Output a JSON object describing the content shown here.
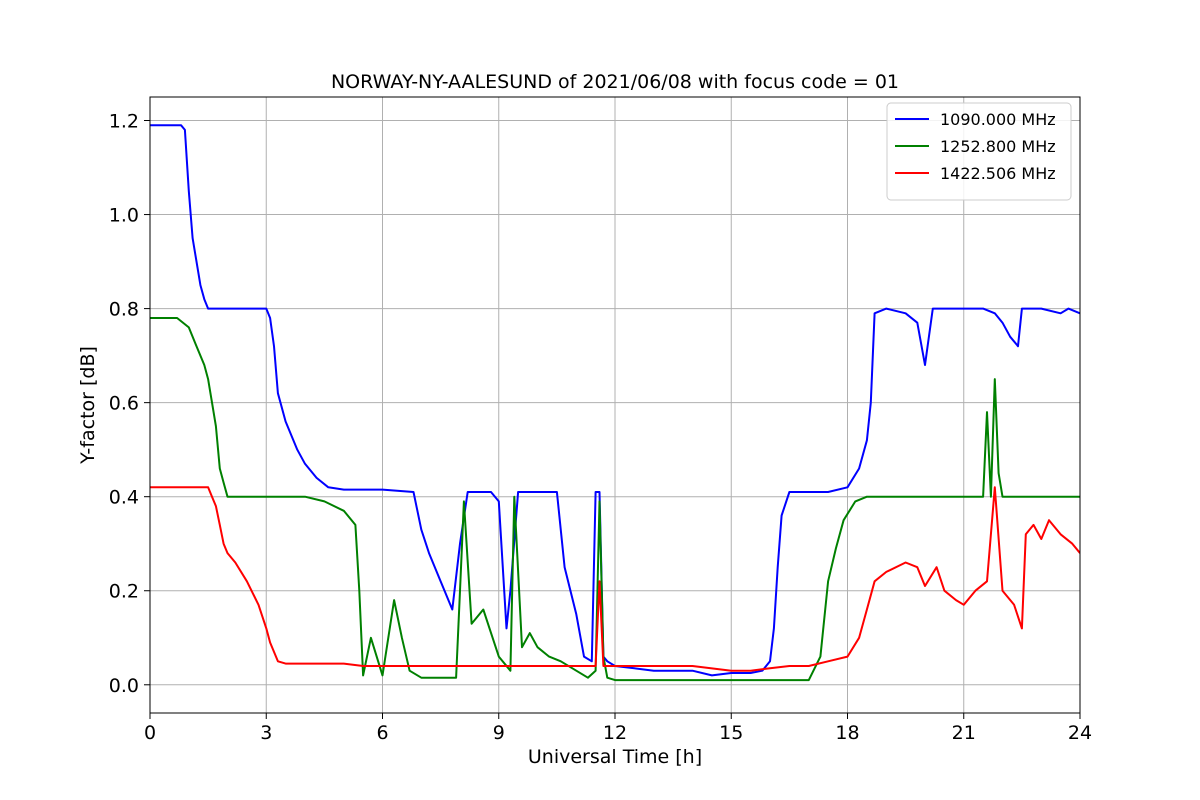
{
  "chart_data": {
    "type": "line",
    "title": "NORWAY-NY-AALESUND of 2021/06/08 with focus code = 01",
    "xlabel": "Universal Time [h]",
    "ylabel": "Y-factor [dB]",
    "xlim": [
      0,
      24
    ],
    "ylim": [
      -0.06,
      1.25
    ],
    "xticks": [
      0,
      3,
      6,
      9,
      12,
      15,
      18,
      21,
      24
    ],
    "xtick_labels": [
      "0",
      "3",
      "6",
      "9",
      "12",
      "15",
      "18",
      "21",
      "24"
    ],
    "yticks": [
      0.0,
      0.2,
      0.4,
      0.6,
      0.8,
      1.0,
      1.2
    ],
    "ytick_labels": [
      "0.0",
      "0.2",
      "0.4",
      "0.6",
      "0.8",
      "1.0",
      "1.2"
    ],
    "grid": true,
    "legend_position": "top-right",
    "series": [
      {
        "name": "1090.000 MHz",
        "color": "#0000ff",
        "x": [
          0,
          0.8,
          0.9,
          1.0,
          1.1,
          1.2,
          1.3,
          1.4,
          1.5,
          2.0,
          3.0,
          3.1,
          3.2,
          3.3,
          3.5,
          3.8,
          4.0,
          4.3,
          4.6,
          5.0,
          6.0,
          6.8,
          7.0,
          7.2,
          7.5,
          7.8,
          8.0,
          8.2,
          8.5,
          8.8,
          9.0,
          9.2,
          9.3,
          9.5,
          9.6,
          10.0,
          10.5,
          10.7,
          11.0,
          11.2,
          11.4,
          11.5,
          11.6,
          11.7,
          11.8,
          12.0,
          12.5,
          13.0,
          14.0,
          14.5,
          15.0,
          15.5,
          15.8,
          16.0,
          16.1,
          16.2,
          16.3,
          16.5,
          17.0,
          17.5,
          18.0,
          18.3,
          18.5,
          18.6,
          18.7,
          19.0,
          19.5,
          19.8,
          20.0,
          20.2,
          20.5,
          21.0,
          21.4,
          21.5,
          21.8,
          22.0,
          22.2,
          22.4,
          22.5,
          22.7,
          23.0,
          23.5,
          23.7,
          24.0
        ],
        "y": [
          1.19,
          1.19,
          1.18,
          1.05,
          0.95,
          0.9,
          0.85,
          0.82,
          0.8,
          0.8,
          0.8,
          0.78,
          0.72,
          0.62,
          0.56,
          0.5,
          0.47,
          0.44,
          0.42,
          0.415,
          0.415,
          0.41,
          0.33,
          0.28,
          0.22,
          0.16,
          0.3,
          0.41,
          0.41,
          0.41,
          0.39,
          0.12,
          0.2,
          0.41,
          0.41,
          0.41,
          0.41,
          0.25,
          0.15,
          0.06,
          0.05,
          0.41,
          0.41,
          0.06,
          0.05,
          0.04,
          0.035,
          0.03,
          0.03,
          0.02,
          0.025,
          0.025,
          0.03,
          0.05,
          0.12,
          0.25,
          0.36,
          0.41,
          0.41,
          0.41,
          0.42,
          0.46,
          0.52,
          0.6,
          0.79,
          0.8,
          0.79,
          0.77,
          0.68,
          0.8,
          0.8,
          0.8,
          0.8,
          0.8,
          0.79,
          0.77,
          0.74,
          0.72,
          0.8,
          0.8,
          0.8,
          0.79,
          0.8,
          0.79
        ]
      },
      {
        "name": "1252.800 MHz",
        "color": "#008000",
        "x": [
          0,
          0.7,
          1.0,
          1.2,
          1.4,
          1.5,
          1.6,
          1.7,
          1.8,
          1.9,
          2.0,
          2.2,
          2.5,
          3.0,
          4.0,
          4.5,
          5.0,
          5.3,
          5.4,
          5.5,
          5.7,
          6.0,
          6.3,
          6.5,
          6.7,
          7.0,
          7.5,
          7.9,
          8.0,
          8.1,
          8.3,
          8.6,
          9.0,
          9.3,
          9.4,
          9.6,
          9.8,
          10.0,
          10.3,
          10.6,
          11.0,
          11.3,
          11.5,
          11.6,
          11.7,
          11.8,
          12.0,
          13.0,
          14.0,
          15.0,
          16.0,
          17.0,
          17.3,
          17.5,
          17.7,
          17.9,
          18.2,
          18.5,
          19.0,
          20.0,
          21.0,
          21.3,
          21.5,
          21.6,
          21.7,
          21.8,
          21.9,
          22.0,
          22.5,
          23.0,
          24.0
        ],
        "y": [
          0.78,
          0.78,
          0.76,
          0.72,
          0.68,
          0.65,
          0.6,
          0.55,
          0.46,
          0.43,
          0.4,
          0.4,
          0.4,
          0.4,
          0.4,
          0.39,
          0.37,
          0.34,
          0.2,
          0.02,
          0.1,
          0.02,
          0.18,
          0.1,
          0.03,
          0.015,
          0.015,
          0.015,
          0.2,
          0.39,
          0.13,
          0.16,
          0.06,
          0.03,
          0.4,
          0.08,
          0.11,
          0.08,
          0.06,
          0.05,
          0.03,
          0.015,
          0.03,
          0.39,
          0.06,
          0.015,
          0.01,
          0.01,
          0.01,
          0.01,
          0.01,
          0.01,
          0.06,
          0.22,
          0.29,
          0.35,
          0.39,
          0.4,
          0.4,
          0.4,
          0.4,
          0.4,
          0.4,
          0.58,
          0.4,
          0.65,
          0.45,
          0.4,
          0.4,
          0.4,
          0.4
        ]
      },
      {
        "name": "1422.506 MHz",
        "color": "#ff0000",
        "x": [
          0,
          1.5,
          1.6,
          1.7,
          1.8,
          1.9,
          2.0,
          2.2,
          2.5,
          2.8,
          3.0,
          3.1,
          3.2,
          3.3,
          3.5,
          4.0,
          4.5,
          5.0,
          5.5,
          6.0,
          7.0,
          8.0,
          9.0,
          10.0,
          11.0,
          11.5,
          11.6,
          11.7,
          11.8,
          12.0,
          13.0,
          14.0,
          15.0,
          15.5,
          16.0,
          16.5,
          17.0,
          17.5,
          18.0,
          18.3,
          18.5,
          18.7,
          19.0,
          19.5,
          19.8,
          20.0,
          20.3,
          20.5,
          20.8,
          21.0,
          21.3,
          21.6,
          21.8,
          22.0,
          22.3,
          22.5,
          22.6,
          22.8,
          23.0,
          23.2,
          23.5,
          23.8,
          24.0
        ],
        "y": [
          0.42,
          0.42,
          0.4,
          0.38,
          0.34,
          0.3,
          0.28,
          0.26,
          0.22,
          0.17,
          0.12,
          0.09,
          0.07,
          0.05,
          0.045,
          0.045,
          0.045,
          0.045,
          0.04,
          0.04,
          0.04,
          0.04,
          0.04,
          0.04,
          0.04,
          0.04,
          0.22,
          0.04,
          0.04,
          0.04,
          0.04,
          0.04,
          0.03,
          0.03,
          0.035,
          0.04,
          0.04,
          0.05,
          0.06,
          0.1,
          0.16,
          0.22,
          0.24,
          0.26,
          0.25,
          0.21,
          0.25,
          0.2,
          0.18,
          0.17,
          0.2,
          0.22,
          0.42,
          0.2,
          0.17,
          0.12,
          0.32,
          0.34,
          0.31,
          0.35,
          0.32,
          0.3,
          0.28
        ]
      }
    ]
  }
}
